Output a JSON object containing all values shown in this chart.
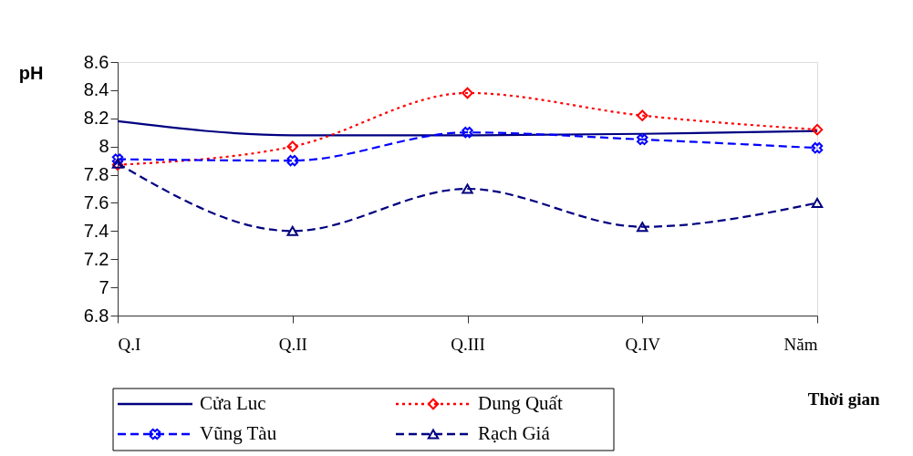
{
  "chart_data": {
    "type": "line",
    "xlabel": "Thời gian",
    "ylabel": "pH",
    "categories": [
      "Q.I",
      "Q.II",
      "Q.III",
      "Q.IV",
      "Năm"
    ],
    "ylim": [
      6.8,
      8.6
    ],
    "yticks": [
      6.8,
      7,
      7.2,
      7.4,
      7.6,
      7.8,
      8,
      8.2,
      8.4,
      8.6
    ],
    "grid": false,
    "legend": "bottom",
    "series": [
      {
        "name": "Cửa Luc",
        "color": "#000080",
        "marker": "none",
        "line_style": "solid",
        "values": [
          8.18,
          8.08,
          8.08,
          8.09,
          8.11
        ]
      },
      {
        "name": "Dung Quất",
        "color": "#ff0000",
        "marker": "diamond",
        "line_style": "dotted",
        "values": [
          7.87,
          8.0,
          8.38,
          8.22,
          8.12
        ]
      },
      {
        "name": "Vũng Tàu",
        "color": "#0000ff",
        "marker": "cross",
        "line_style": "dashed",
        "values": [
          7.91,
          7.9,
          8.1,
          8.05,
          7.99
        ]
      },
      {
        "name": "Rạch Giá",
        "color": "#000080",
        "marker": "triangle",
        "line_style": "dashed",
        "values": [
          7.88,
          7.4,
          7.7,
          7.43,
          7.6
        ]
      }
    ]
  }
}
